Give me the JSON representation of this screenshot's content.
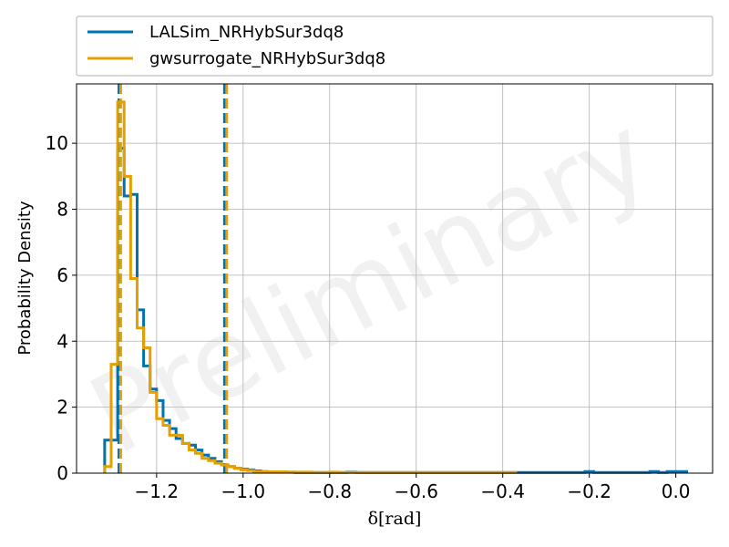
{
  "chart_data": {
    "type": "histogram",
    "xlabel": "δ[rad]",
    "ylabel": "Probability Density",
    "xlim": [
      -1.385,
      0.085
    ],
    "ylim": [
      0,
      11.8
    ],
    "xticks": [
      -1.2,
      -1.0,
      -0.8,
      -0.6,
      -0.4,
      -0.2,
      0.0
    ],
    "xtick_labels": [
      "−1.2",
      "−1.0",
      "−0.8",
      "−0.6",
      "−0.4",
      "−0.2",
      "0.0"
    ],
    "yticks": [
      0,
      2,
      4,
      6,
      8,
      10
    ],
    "ytick_labels": [
      "0",
      "2",
      "4",
      "6",
      "8",
      "10"
    ],
    "grid": true,
    "legend_position": "above plot, full width",
    "watermark": "Preliminary",
    "series": [
      {
        "name": "LALSim_NRHybSur3dq8",
        "color": "#0072B2",
        "bin_edges": [
          -1.32,
          -1.305,
          -1.29,
          -1.275,
          -1.26,
          -1.245,
          -1.23,
          -1.215,
          -1.2,
          -1.185,
          -1.17,
          -1.155,
          -1.14,
          -1.125,
          -1.11,
          -1.095,
          -1.08,
          -1.065,
          -1.05,
          -1.035,
          -1.02,
          -1.005,
          -0.99,
          -0.975,
          -0.96,
          -0.945,
          -0.93,
          -0.915,
          -0.9,
          -0.88,
          -0.86,
          -0.84,
          -0.82,
          -0.8,
          -0.78,
          -0.76,
          -0.74,
          -0.72,
          -0.7,
          -0.68,
          -0.66,
          -0.64,
          -0.62,
          -0.6,
          -0.4,
          -0.21,
          -0.19,
          -0.06,
          -0.04,
          -0.02,
          0.025
        ],
        "values": [
          1.0,
          1.0,
          9.85,
          8.4,
          8.45,
          4.95,
          3.25,
          2.55,
          2.2,
          1.6,
          1.35,
          1.05,
          0.9,
          0.85,
          0.7,
          0.55,
          0.45,
          0.35,
          0.25,
          0.2,
          0.15,
          0.12,
          0.1,
          0.07,
          0.05,
          0.04,
          0.03,
          0.03,
          0.03,
          0.02,
          0.02,
          0.02,
          0.02,
          0.02,
          0.02,
          0.03,
          0.02,
          0.02,
          0.02,
          0.02,
          0.02,
          0.02,
          0.02,
          0.02,
          0.02,
          0.05,
          0.02,
          0.05,
          0.02,
          0.05
        ],
        "vlines": [
          -1.287,
          -1.043
        ]
      },
      {
        "name": "gwsurrogate_NRHybSur3dq8",
        "color": "#E69F00",
        "bin_edges": [
          -1.32,
          -1.305,
          -1.29,
          -1.275,
          -1.26,
          -1.245,
          -1.23,
          -1.215,
          -1.2,
          -1.185,
          -1.17,
          -1.155,
          -1.14,
          -1.125,
          -1.11,
          -1.095,
          -1.08,
          -1.065,
          -1.05,
          -1.035,
          -1.02,
          -1.005,
          -0.99,
          -0.975,
          -0.96,
          -0.945,
          -0.93,
          -0.915,
          -0.9,
          -0.88,
          -0.86,
          -0.84,
          -0.82,
          -0.8,
          -0.78,
          -0.76,
          -0.74,
          -0.72,
          -0.7,
          -0.68,
          -0.66,
          -0.64,
          -0.62,
          -0.6,
          -0.58,
          -0.56,
          -0.54,
          -0.52,
          -0.5,
          -0.48,
          -0.46,
          -0.44,
          -0.42,
          -0.4,
          -0.37
        ],
        "values": [
          0.2,
          3.3,
          11.25,
          9.0,
          5.9,
          4.4,
          3.8,
          2.45,
          1.65,
          1.45,
          1.15,
          1.15,
          0.9,
          0.7,
          0.6,
          0.45,
          0.38,
          0.3,
          0.25,
          0.2,
          0.15,
          0.1,
          0.08,
          0.05,
          0.04,
          0.04,
          0.04,
          0.04,
          0.03,
          0.03,
          0.03,
          0.02,
          0.02,
          0.03,
          0.02,
          0.02,
          0.02,
          0.02,
          0.02,
          0.02,
          0.02,
          0.02,
          0.02,
          0.02,
          0.02,
          0.02,
          0.02,
          0.02,
          0.02,
          0.02,
          0.02,
          0.02,
          0.02,
          0.02
        ],
        "vlines": [
          -1.283,
          -1.038
        ]
      }
    ]
  }
}
